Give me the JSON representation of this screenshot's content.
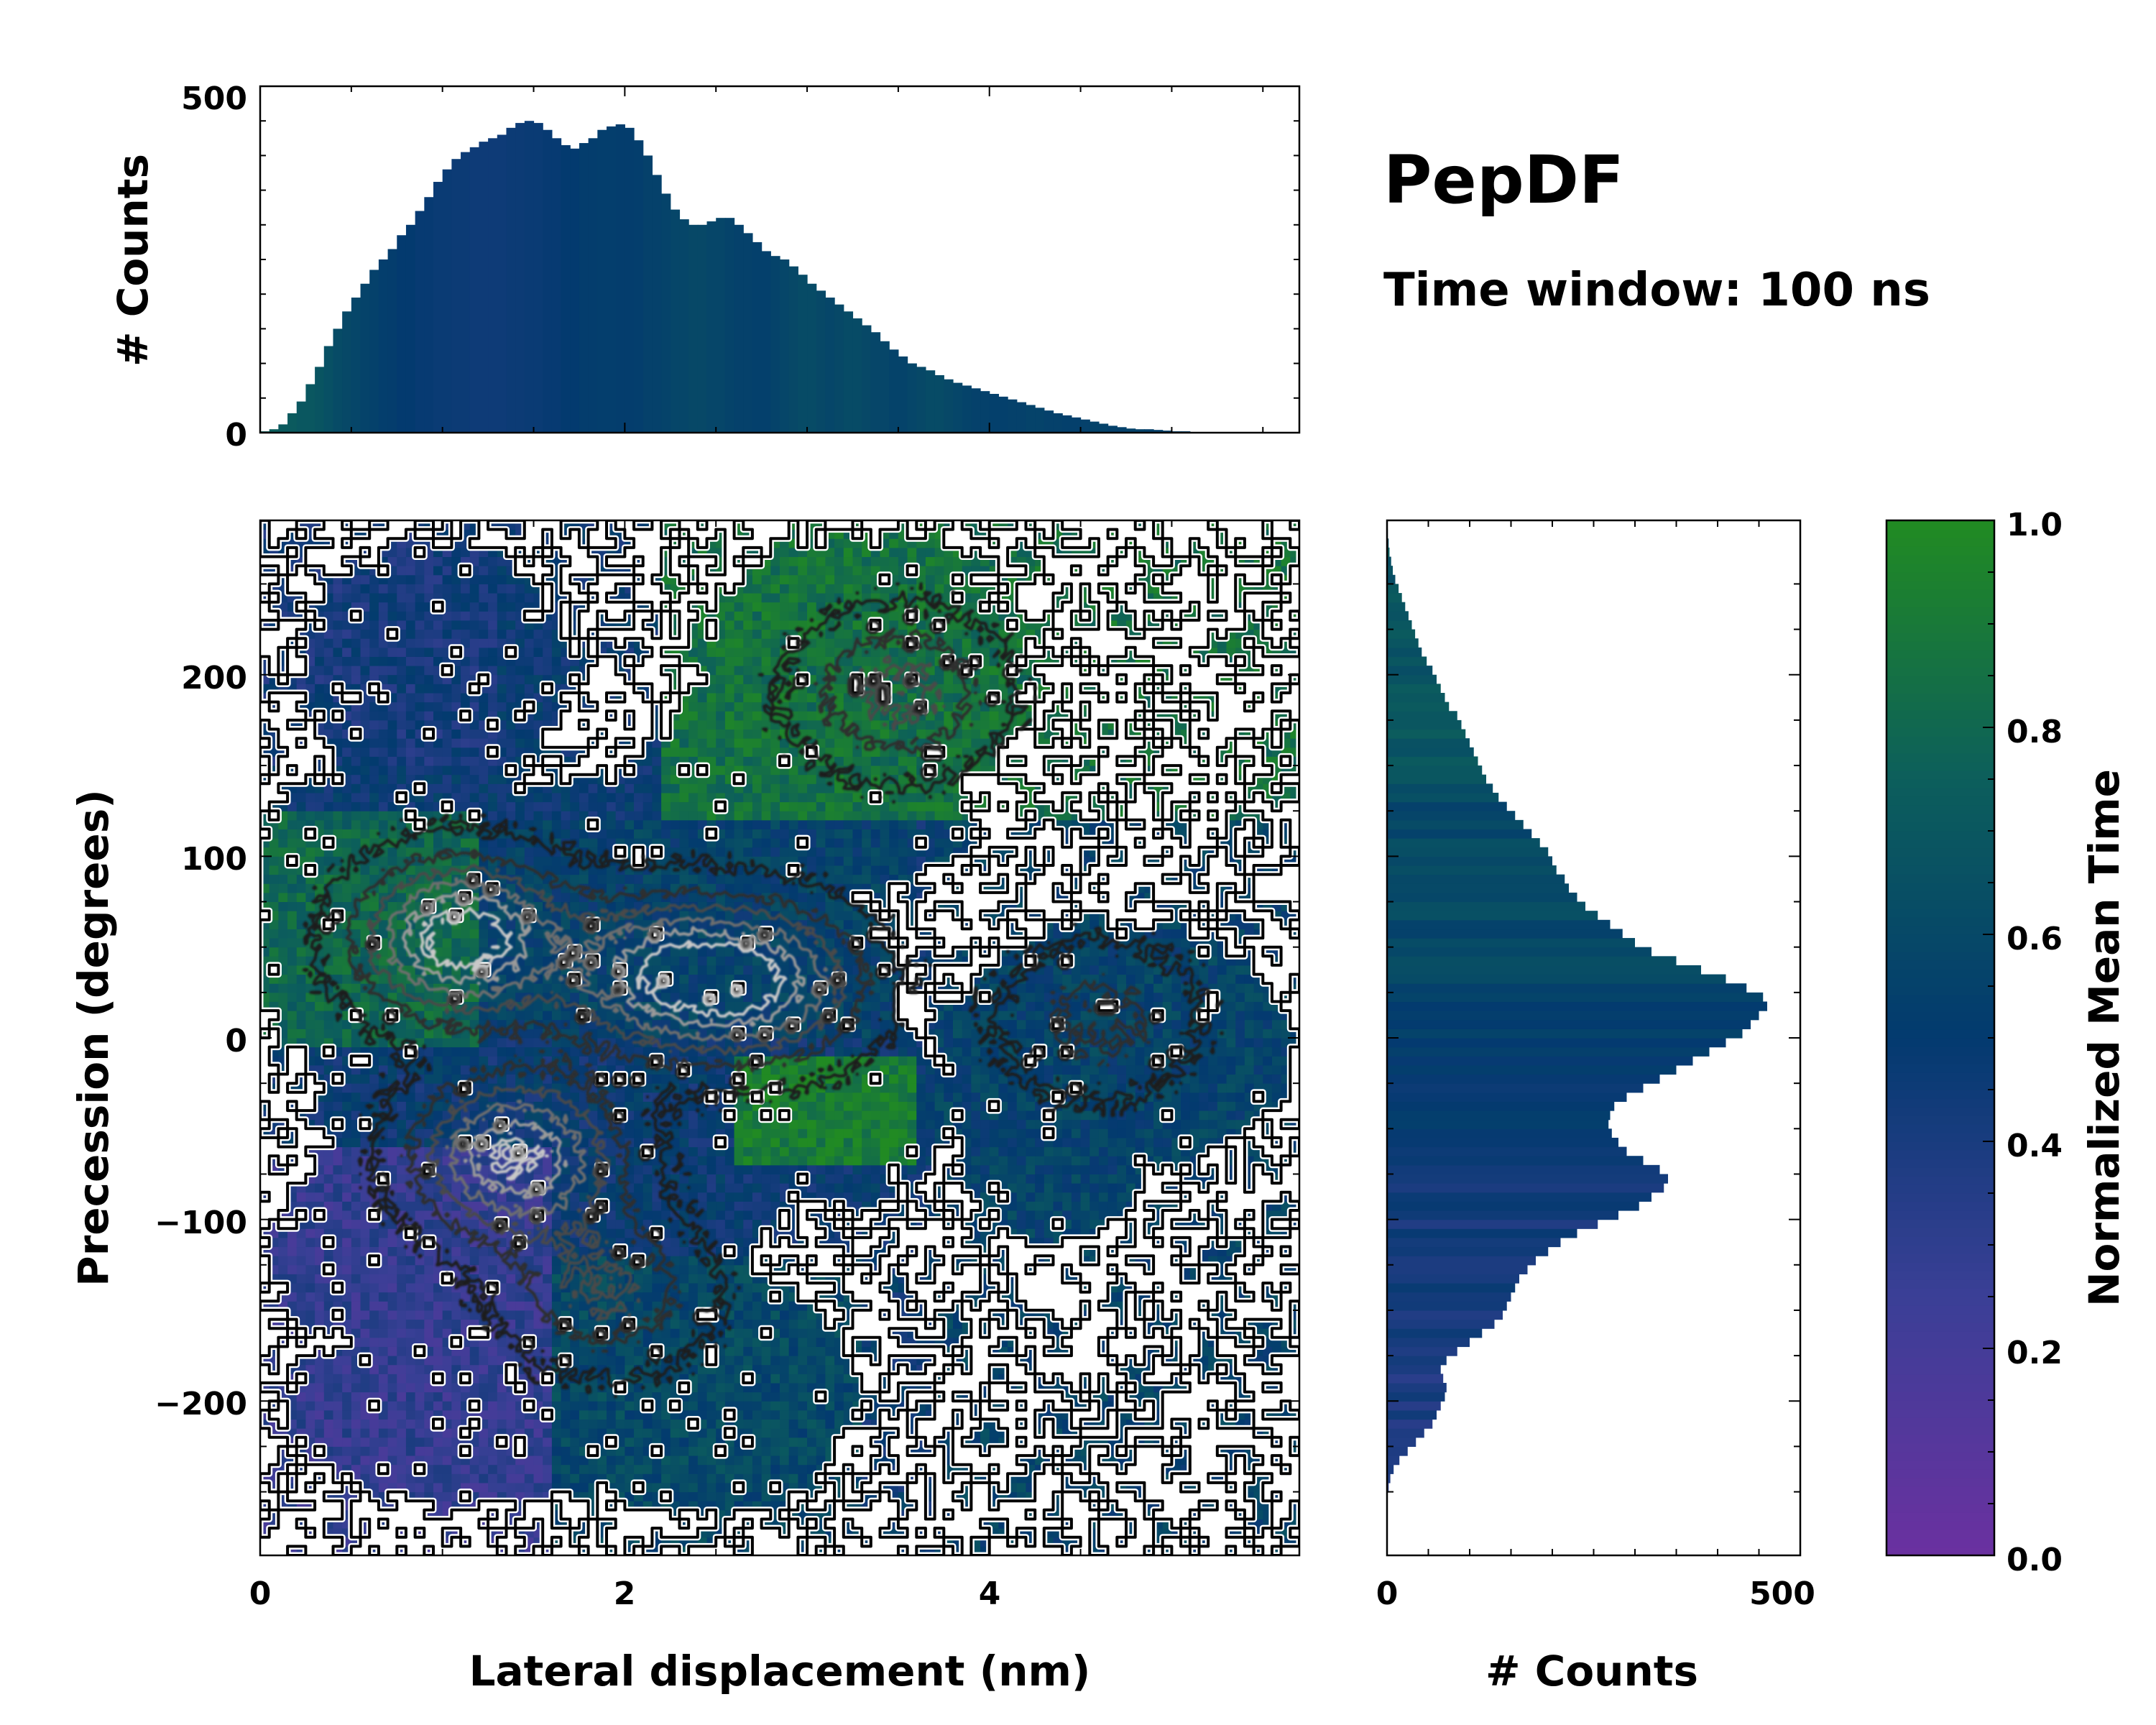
{
  "figure_title": "PepDF",
  "figure_subtitle": "Time window: 100 ns",
  "colors": {
    "cmap": [
      "#6a31a0",
      "#3a3f96",
      "#033a6f",
      "#0c5e5c",
      "#218a23"
    ],
    "outline": "#000000",
    "halo": "#ffffff"
  },
  "chart_data": [
    {
      "id": "top-histogram",
      "type": "bar",
      "title": "",
      "xlabel": "",
      "ylabel": "# Counts",
      "xlim": [
        0,
        5.7
      ],
      "ylim": [
        0,
        500
      ],
      "yticks": [
        0,
        500
      ],
      "yticklabels": [
        "0",
        "500"
      ],
      "bin_start": 0.0,
      "bin_width": 0.05,
      "values": [
        2,
        5,
        12,
        28,
        45,
        70,
        95,
        125,
        150,
        175,
        195,
        215,
        235,
        250,
        265,
        285,
        300,
        320,
        340,
        362,
        380,
        395,
        405,
        412,
        420,
        425,
        430,
        440,
        447,
        450,
        447,
        437,
        425,
        415,
        410,
        418,
        425,
        437,
        442,
        445,
        440,
        422,
        400,
        372,
        345,
        322,
        308,
        300,
        300,
        305,
        310,
        310,
        300,
        288,
        275,
        262,
        255,
        250,
        240,
        228,
        215,
        205,
        195,
        185,
        175,
        165,
        155,
        145,
        132,
        120,
        110,
        100,
        95,
        90,
        83,
        77,
        72,
        68,
        64,
        60,
        56,
        52,
        48,
        44,
        40,
        36,
        32,
        28,
        25,
        22,
        19,
        16,
        13,
        10,
        8,
        6,
        5,
        5,
        4,
        3,
        2,
        2,
        1,
        1,
        0
      ],
      "value_mean_time": [
        0.75,
        0.75,
        0.72,
        0.72,
        0.7,
        0.7,
        0.68,
        0.65,
        0.62,
        0.6,
        0.58,
        0.56,
        0.55,
        0.53,
        0.52,
        0.5,
        0.5,
        0.48,
        0.48,
        0.47,
        0.47,
        0.46,
        0.46,
        0.45,
        0.45,
        0.45,
        0.45,
        0.46,
        0.46,
        0.47,
        0.47,
        0.48,
        0.48,
        0.5,
        0.5,
        0.52,
        0.52,
        0.53,
        0.53,
        0.52,
        0.52,
        0.53,
        0.55,
        0.55,
        0.56,
        0.58,
        0.58,
        0.6,
        0.6,
        0.58,
        0.58,
        0.56,
        0.55,
        0.55,
        0.54,
        0.54,
        0.56,
        0.58,
        0.6,
        0.62,
        0.62,
        0.6,
        0.58,
        0.6,
        0.62,
        0.62,
        0.6,
        0.58,
        0.58,
        0.56,
        0.56,
        0.58,
        0.6,
        0.62,
        0.62,
        0.6,
        0.58,
        0.56,
        0.55,
        0.55,
        0.54,
        0.54,
        0.55,
        0.55,
        0.56,
        0.56,
        0.55,
        0.55,
        0.54,
        0.54,
        0.55,
        0.56,
        0.56,
        0.55,
        0.55,
        0.56,
        0.56,
        0.55,
        0.55,
        0.55,
        0.55,
        0.55,
        0.55,
        0.55,
        0.55
      ]
    },
    {
      "id": "main-heatmap",
      "type": "heatmap",
      "title": "",
      "xlabel": "Lateral displacement (nm)",
      "ylabel": "Precession (degrees)",
      "xlim": [
        0,
        5.7
      ],
      "ylim": [
        -285,
        285
      ],
      "xticks": [
        0,
        2,
        4
      ],
      "xticklabels": [
        "0",
        "2",
        "4"
      ],
      "yticks": [
        -200,
        -100,
        0,
        100,
        200
      ],
      "yticklabels": [
        "−200",
        "−100",
        "0",
        "100",
        "200"
      ],
      "grid": false,
      "color_value": "normalized mean time",
      "density_modes": [
        {
          "x": 1.1,
          "y": 55,
          "amplitude": 1.0
        },
        {
          "x": 1.4,
          "y": -65,
          "amplitude": 0.9
        },
        {
          "x": 2.2,
          "y": 35,
          "amplitude": 0.75
        },
        {
          "x": 2.8,
          "y": 30,
          "amplitude": 0.7
        },
        {
          "x": 1.9,
          "y": -140,
          "amplitude": 0.45
        },
        {
          "x": 3.5,
          "y": 190,
          "amplitude": 0.5
        },
        {
          "x": 4.6,
          "y": 10,
          "amplitude": 0.35
        }
      ],
      "regions_mean_time": [
        {
          "region": "upper-left (0.4-1.2 nm, 150-260 deg)",
          "value": 0.42
        },
        {
          "region": "left band (0-1.2 nm, 0-120 deg)",
          "value": 0.82
        },
        {
          "region": "upper-right lobe (2.3-4.4 nm, 120-280 deg)",
          "value": 0.85
        },
        {
          "region": "center (1.2-3.5 nm, -80-120 deg)",
          "value": 0.5
        },
        {
          "region": "lower-left (0.2-1.6 nm, -250 to -60 deg)",
          "value": 0.28
        },
        {
          "region": "lower-center (1.6-3.2 nm, -250 to -120 deg)",
          "value": 0.62
        },
        {
          "region": "right lobe (3.7-5.7 nm, -110 to 90 deg)",
          "value": 0.55
        },
        {
          "region": "green spot (2.8-3.6 nm, -70 to -10 deg)",
          "value": 0.95
        }
      ]
    },
    {
      "id": "right-histogram",
      "type": "bar",
      "orientation": "horizontal",
      "title": "",
      "xlabel": "# Counts",
      "ylabel": "",
      "xlim": [
        0,
        500
      ],
      "ylim": [
        -285,
        285
      ],
      "xticks": [
        0,
        500
      ],
      "xticklabels": [
        "0",
        "500"
      ],
      "bin_start": -285,
      "bin_width": 5,
      "values": [
        0,
        0,
        0,
        0,
        0,
        0,
        0,
        2,
        4,
        8,
        15,
        25,
        35,
        45,
        55,
        60,
        65,
        70,
        72,
        68,
        65,
        72,
        85,
        100,
        115,
        130,
        140,
        145,
        150,
        155,
        160,
        170,
        180,
        195,
        210,
        230,
        255,
        280,
        305,
        320,
        335,
        340,
        330,
        310,
        290,
        280,
        272,
        268,
        270,
        275,
        290,
        310,
        330,
        350,
        370,
        390,
        410,
        430,
        440,
        450,
        460,
        455,
        435,
        410,
        380,
        350,
        320,
        300,
        285,
        270,
        255,
        240,
        230,
        220,
        215,
        205,
        200,
        195,
        185,
        175,
        165,
        155,
        145,
        135,
        128,
        120,
        115,
        110,
        105,
        100,
        95,
        90,
        85,
        75,
        70,
        65,
        60,
        55,
        48,
        42,
        38,
        34,
        30,
        26,
        22,
        18,
        14,
        10,
        7,
        5,
        3,
        2,
        1,
        0,
        0
      ]
    }
  ],
  "colorbar": {
    "label": "Normalized Mean Time",
    "range": [
      0.0,
      1.0
    ],
    "ticks": [
      0.0,
      0.2,
      0.4,
      0.6,
      0.8,
      1.0
    ],
    "ticklabels": [
      "0.0",
      "0.2",
      "0.4",
      "0.6",
      "0.8",
      "1.0"
    ]
  }
}
